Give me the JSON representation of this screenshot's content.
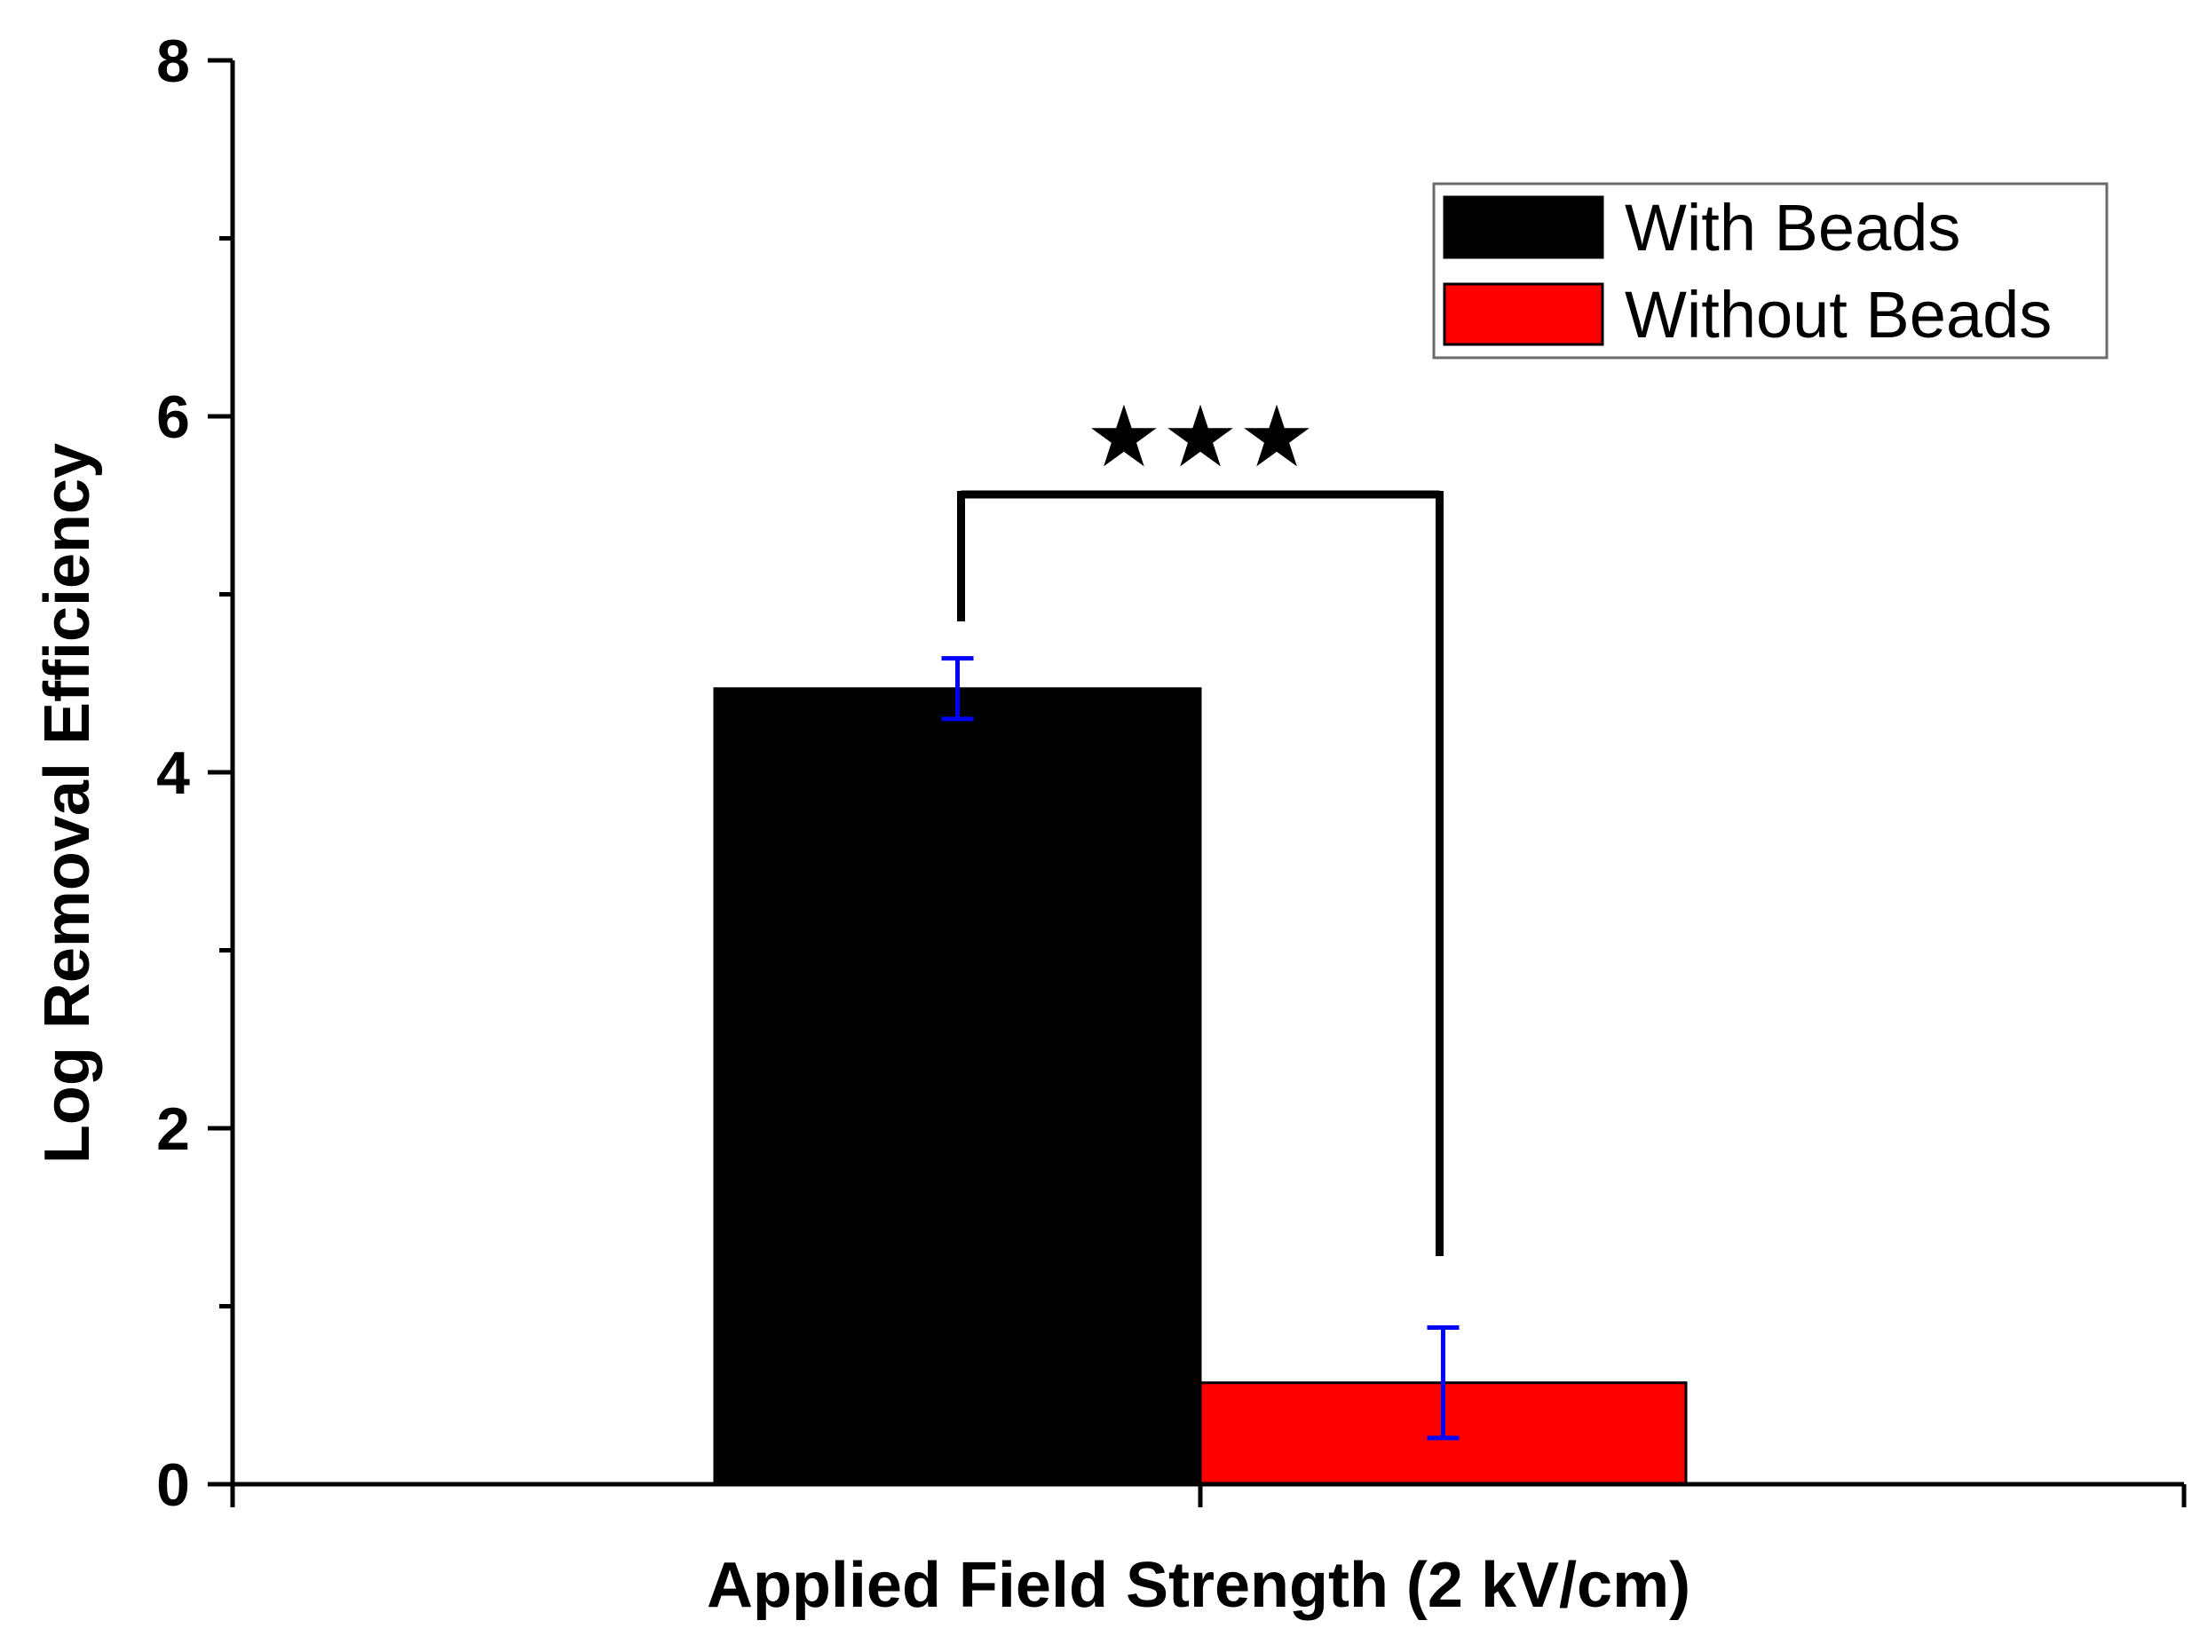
{
  "chart_data": {
    "type": "bar",
    "title": "",
    "xlabel": "Applied Field Strength (2 kV/cm)",
    "ylabel": "Log Removal Efficiency",
    "ylim": [
      0,
      8
    ],
    "yticks": [
      "0",
      "2",
      "4",
      "6",
      "8"
    ],
    "categories": [
      "Applied Field Strength (2 kV/cm)"
    ],
    "series": [
      {
        "name": "With Beads",
        "values": [
          4.47
        ],
        "error": [
          0.17
        ],
        "color": "#000000"
      },
      {
        "name": "Without Beads",
        "values": [
          0.57
        ],
        "error": [
          0.31
        ],
        "color": "#ff0000"
      }
    ],
    "error_bar_color": "#0000ff",
    "legend_position": "top-right",
    "significance": {
      "label": "★★★",
      "between": [
        "With Beads",
        "Without Beads"
      ]
    },
    "grid": false
  }
}
